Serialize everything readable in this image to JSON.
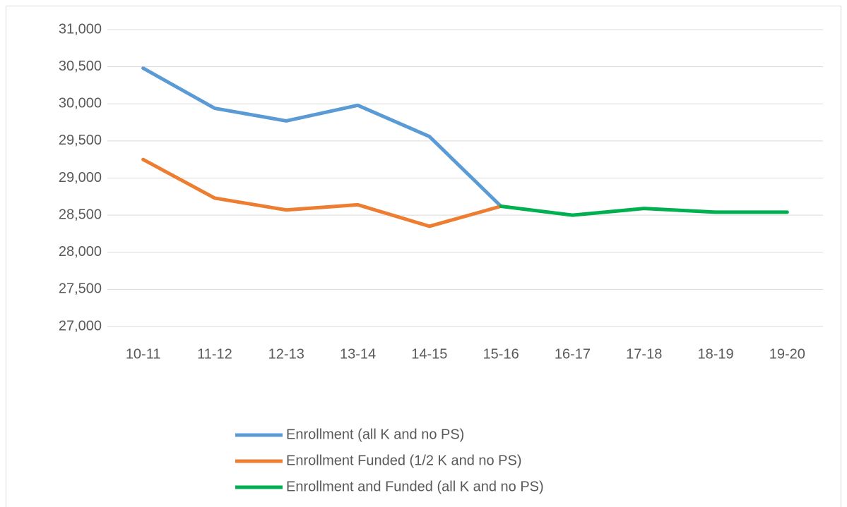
{
  "chart_data": {
    "type": "line",
    "categories": [
      "10-11",
      "11-12",
      "12-13",
      "13-14",
      "14-15",
      "15-16",
      "16-17",
      "17-18",
      "18-19",
      "19-20"
    ],
    "series": [
      {
        "name": "Enrollment (all K and no PS)",
        "color": "#5b9bd5",
        "values": [
          30480,
          29940,
          29770,
          29980,
          29560,
          28620,
          null,
          null,
          null,
          null
        ]
      },
      {
        "name": "Enrollment Funded (1/2 K and no PS)",
        "color": "#ed7d31",
        "values": [
          29250,
          28730,
          28570,
          28640,
          28350,
          28620,
          null,
          null,
          null,
          null
        ]
      },
      {
        "name": "Enrollment and Funded (all K and no PS)",
        "color": "#00b050",
        "values": [
          null,
          null,
          null,
          null,
          null,
          28620,
          28500,
          28590,
          28540,
          28540
        ]
      }
    ],
    "ylim": [
      27000,
      31000
    ],
    "yticks": [
      {
        "value": 27000,
        "label": "27,000"
      },
      {
        "value": 27500,
        "label": "27,500"
      },
      {
        "value": 28000,
        "label": "28,000"
      },
      {
        "value": 28500,
        "label": "28,500"
      },
      {
        "value": 29000,
        "label": "29,000"
      },
      {
        "value": 29500,
        "label": "29,500"
      },
      {
        "value": 30000,
        "label": "30,000"
      },
      {
        "value": 30500,
        "label": "30,500"
      },
      {
        "value": 31000,
        "label": "31,000"
      }
    ],
    "grid": true,
    "legend": "bottom"
  }
}
